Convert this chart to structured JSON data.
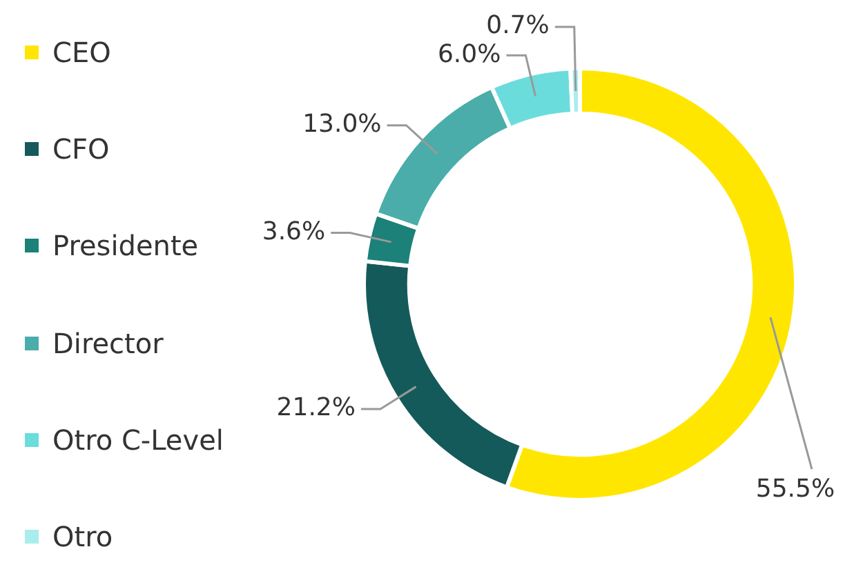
{
  "chart_data": {
    "type": "donut",
    "categories": [
      "CEO",
      "CFO",
      "Presidente",
      "Director",
      "Otro C-Level",
      "Otro"
    ],
    "values": [
      55.5,
      21.2,
      3.6,
      13.0,
      6.0,
      0.7
    ],
    "value_labels": [
      "55.5%",
      "21.2%",
      "3.6%",
      "13.0%",
      "6.0%",
      "0.7%"
    ],
    "colors": [
      "#ffe600",
      "#155a5a",
      "#1b8179",
      "#4aadaa",
      "#6bdcdc",
      "#a9eded"
    ],
    "legend": "left"
  }
}
